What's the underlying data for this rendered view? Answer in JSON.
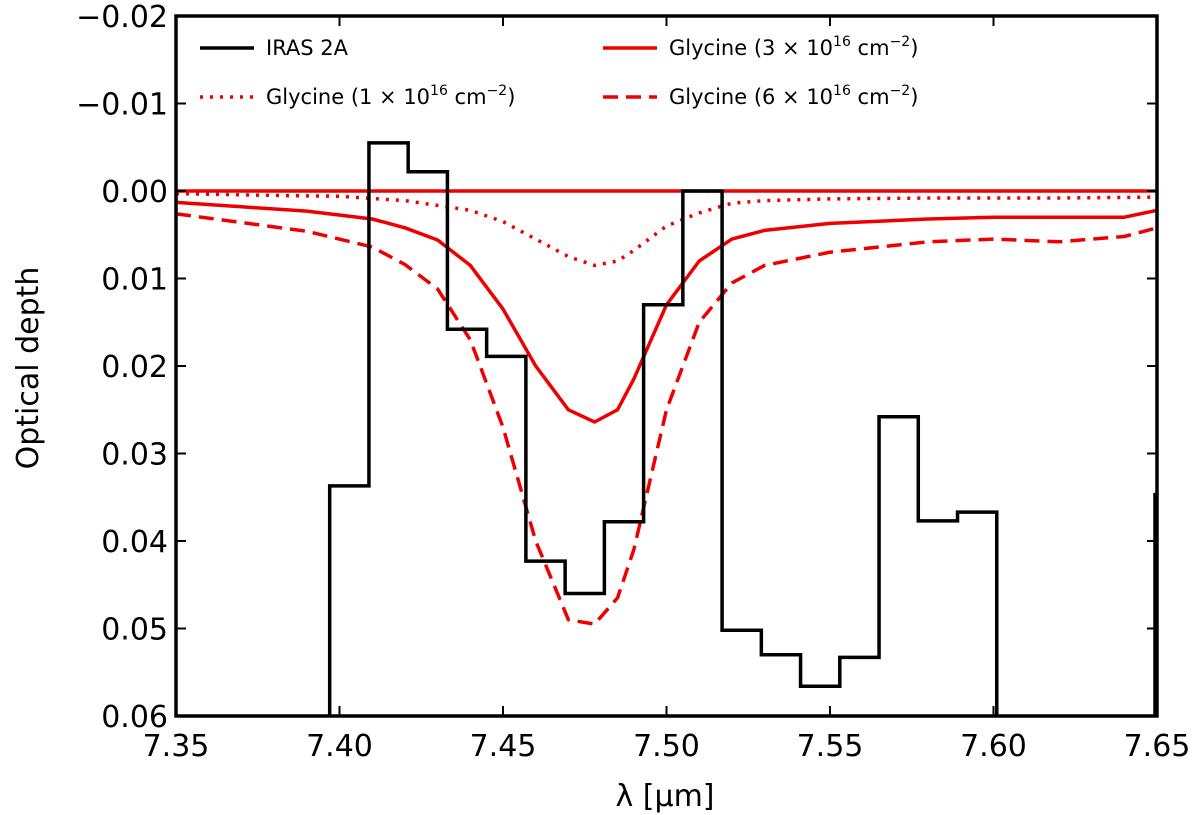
{
  "chart_data": {
    "type": "line",
    "xlabel": "λ [μm]",
    "ylabel": "Optical depth",
    "xlim": [
      7.35,
      7.65
    ],
    "ylim": [
      0.06,
      -0.02
    ],
    "y_inverted": true,
    "grid": false,
    "legend_placement": "top",
    "x_ticks": [
      "7.35",
      "7.40",
      "7.45",
      "7.50",
      "7.55",
      "7.60",
      "7.65"
    ],
    "y_ticks": [
      "−0.02",
      "−0.01",
      "0.00",
      "0.01",
      "0.02",
      "0.03",
      "0.04",
      "0.05",
      "0.06"
    ],
    "colors": {
      "observed": "#000000",
      "model": "#ee0000"
    },
    "observed": {
      "name": "IRAS 2A",
      "style": "steps",
      "bin_edges": [
        7.397,
        7.409,
        7.421,
        7.433,
        7.445,
        7.457,
        7.469,
        7.481,
        7.493,
        7.505,
        7.517,
        7.529,
        7.541,
        7.553,
        7.565,
        7.577,
        7.589,
        7.601
      ],
      "values": [
        0.0337,
        -0.0055,
        -0.0022,
        0.0158,
        0.0189,
        0.0423,
        0.046,
        0.0378,
        0.013,
        0.0,
        0.0502,
        0.053,
        0.0566,
        0.0533,
        0.0258,
        0.0377,
        0.0367
      ],
      "partial_edge_value": 0.0345
    },
    "series": [
      {
        "name": "Glycine (1 × 10¹⁶ cm⁻²)",
        "label_main": "Glycine (1 × 10",
        "label_exp": "16",
        "label_unit": " cm",
        "label_unit_exp": "−2",
        "label_close": ")",
        "dash": "dotted",
        "x": [
          7.35,
          7.38,
          7.4,
          7.42,
          7.44,
          7.45,
          7.46,
          7.47,
          7.478,
          7.485,
          7.49,
          7.5,
          7.51,
          7.52,
          7.53,
          7.55,
          7.58,
          7.62,
          7.65
        ],
        "y": [
          0.0003,
          0.0005,
          0.0006,
          0.0011,
          0.0022,
          0.0035,
          0.0055,
          0.0075,
          0.0085,
          0.008,
          0.0068,
          0.004,
          0.0025,
          0.0014,
          0.0011,
          0.0009,
          0.0008,
          0.0008,
          0.0007
        ]
      },
      {
        "name": "Glycine (3 × 10¹⁶ cm⁻²)",
        "label_main": "Glycine (3 × 10",
        "label_exp": "16",
        "label_unit": " cm",
        "label_unit_exp": "−2",
        "label_close": ")",
        "dash": "solid",
        "x": [
          7.35,
          7.37,
          7.39,
          7.41,
          7.42,
          7.43,
          7.44,
          7.45,
          7.46,
          7.47,
          7.478,
          7.485,
          7.49,
          7.5,
          7.51,
          7.52,
          7.53,
          7.55,
          7.58,
          7.6,
          7.62,
          7.64,
          7.65
        ],
        "y": [
          0.0013,
          0.0018,
          0.0023,
          0.0032,
          0.0042,
          0.0056,
          0.0085,
          0.0135,
          0.02,
          0.025,
          0.0264,
          0.025,
          0.0215,
          0.013,
          0.008,
          0.0055,
          0.0045,
          0.0037,
          0.0032,
          0.003,
          0.003,
          0.003,
          0.0022
        ]
      },
      {
        "name": "Glycine (6 × 10¹⁶ cm⁻²)",
        "label_main": "Glycine (6 × 10",
        "label_exp": "16",
        "label_unit": " cm",
        "label_unit_exp": "−2",
        "label_close": ")",
        "dash": "dashed",
        "x": [
          7.35,
          7.37,
          7.39,
          7.41,
          7.42,
          7.43,
          7.44,
          7.45,
          7.46,
          7.47,
          7.478,
          7.485,
          7.49,
          7.5,
          7.51,
          7.52,
          7.53,
          7.55,
          7.58,
          7.6,
          7.62,
          7.64,
          7.65
        ],
        "y": [
          0.0026,
          0.0036,
          0.0046,
          0.0064,
          0.0084,
          0.0112,
          0.017,
          0.027,
          0.04,
          0.049,
          0.0495,
          0.0465,
          0.041,
          0.025,
          0.015,
          0.0105,
          0.0085,
          0.007,
          0.0058,
          0.0055,
          0.0058,
          0.0052,
          0.0042
        ]
      },
      {
        "name": "baseline",
        "dash": "solid",
        "x": [
          7.35,
          7.65
        ],
        "y": [
          0.0,
          0.0
        ]
      }
    ]
  }
}
